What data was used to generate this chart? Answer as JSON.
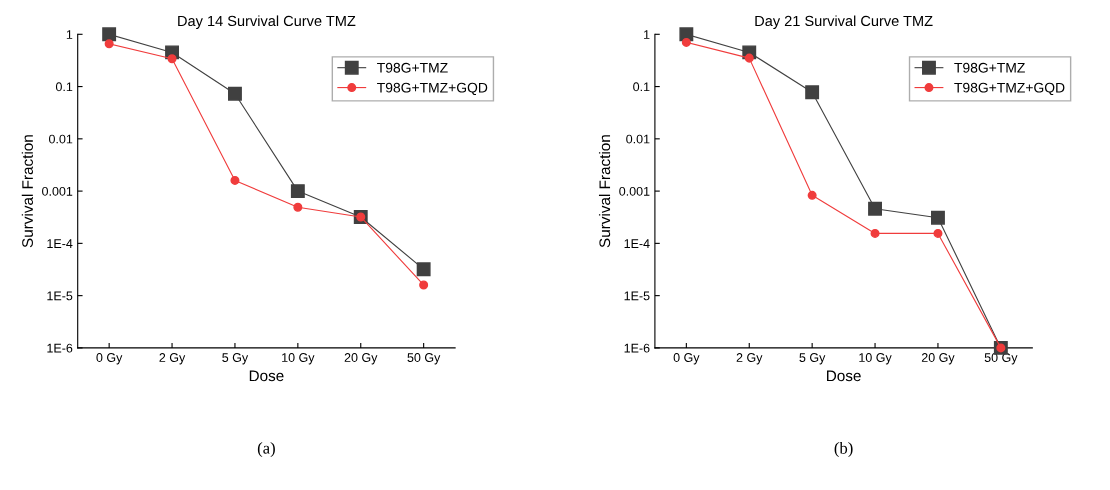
{
  "chart_data": [
    {
      "type": "line",
      "title": "Day 14 Survival Curve TMZ",
      "xlabel": "Dose",
      "ylabel": "Survival Fraction",
      "categories": [
        "0 Gy",
        "2 Gy",
        "5 Gy",
        "10 Gy",
        "20 Gy",
        "50 Gy"
      ],
      "series": [
        {
          "name": "T98G+TMZ",
          "color": "#404040",
          "marker": "square",
          "values": [
            1,
            0.45,
            0.073,
            0.001,
            0.00032,
            3.2e-05
          ]
        },
        {
          "name": "T98G+TMZ+GQD",
          "color": "#f03c3c",
          "marker": "circle",
          "values": [
            0.66,
            0.34,
            0.0016,
            0.00049,
            0.00032,
            1.6e-05
          ]
        }
      ],
      "log": "y",
      "ylim": [
        1e-06,
        1
      ],
      "yticks": [
        1,
        0.1,
        0.01,
        0.001,
        {
          "value": 0.0001,
          "label": "1E-4"
        },
        {
          "value": 1e-05,
          "label": "1E-5"
        },
        {
          "value": 1e-06,
          "label": "1E-6"
        }
      ],
      "legend": "top right",
      "grid": false,
      "line_style": "solid",
      "annotations": [
        "(a)"
      ]
    },
    {
      "type": "line",
      "title": "Day 21 Survival Curve TMZ",
      "xlabel": "Dose",
      "ylabel": "Survival Fraction",
      "categories": [
        "0 Gy",
        "2 Gy",
        "5 Gy",
        "10 Gy",
        "20 Gy",
        "50 Gy"
      ],
      "series": [
        {
          "name": "T98G+TMZ",
          "color": "#404040",
          "marker": "square",
          "values": [
            1,
            0.45,
            0.078,
            0.00046,
            0.00031,
            1e-06
          ]
        },
        {
          "name": "T98G+TMZ+GQD",
          "color": "#f03c3c",
          "marker": "circle",
          "values": [
            0.7,
            0.35,
            0.00083,
            0.000155,
            0.000155,
            1e-06
          ]
        }
      ],
      "log": "y",
      "ylim": [
        1e-06,
        1
      ],
      "yticks": [
        1,
        0.1,
        0.01,
        0.001,
        {
          "value": 0.0001,
          "label": "1E-4"
        },
        {
          "value": 1e-05,
          "label": "1E-5"
        },
        {
          "value": 1e-06,
          "label": "1E-6"
        }
      ],
      "legend": "top right",
      "grid": false,
      "line_style": "solid",
      "annotations": [
        "(b)"
      ]
    }
  ]
}
